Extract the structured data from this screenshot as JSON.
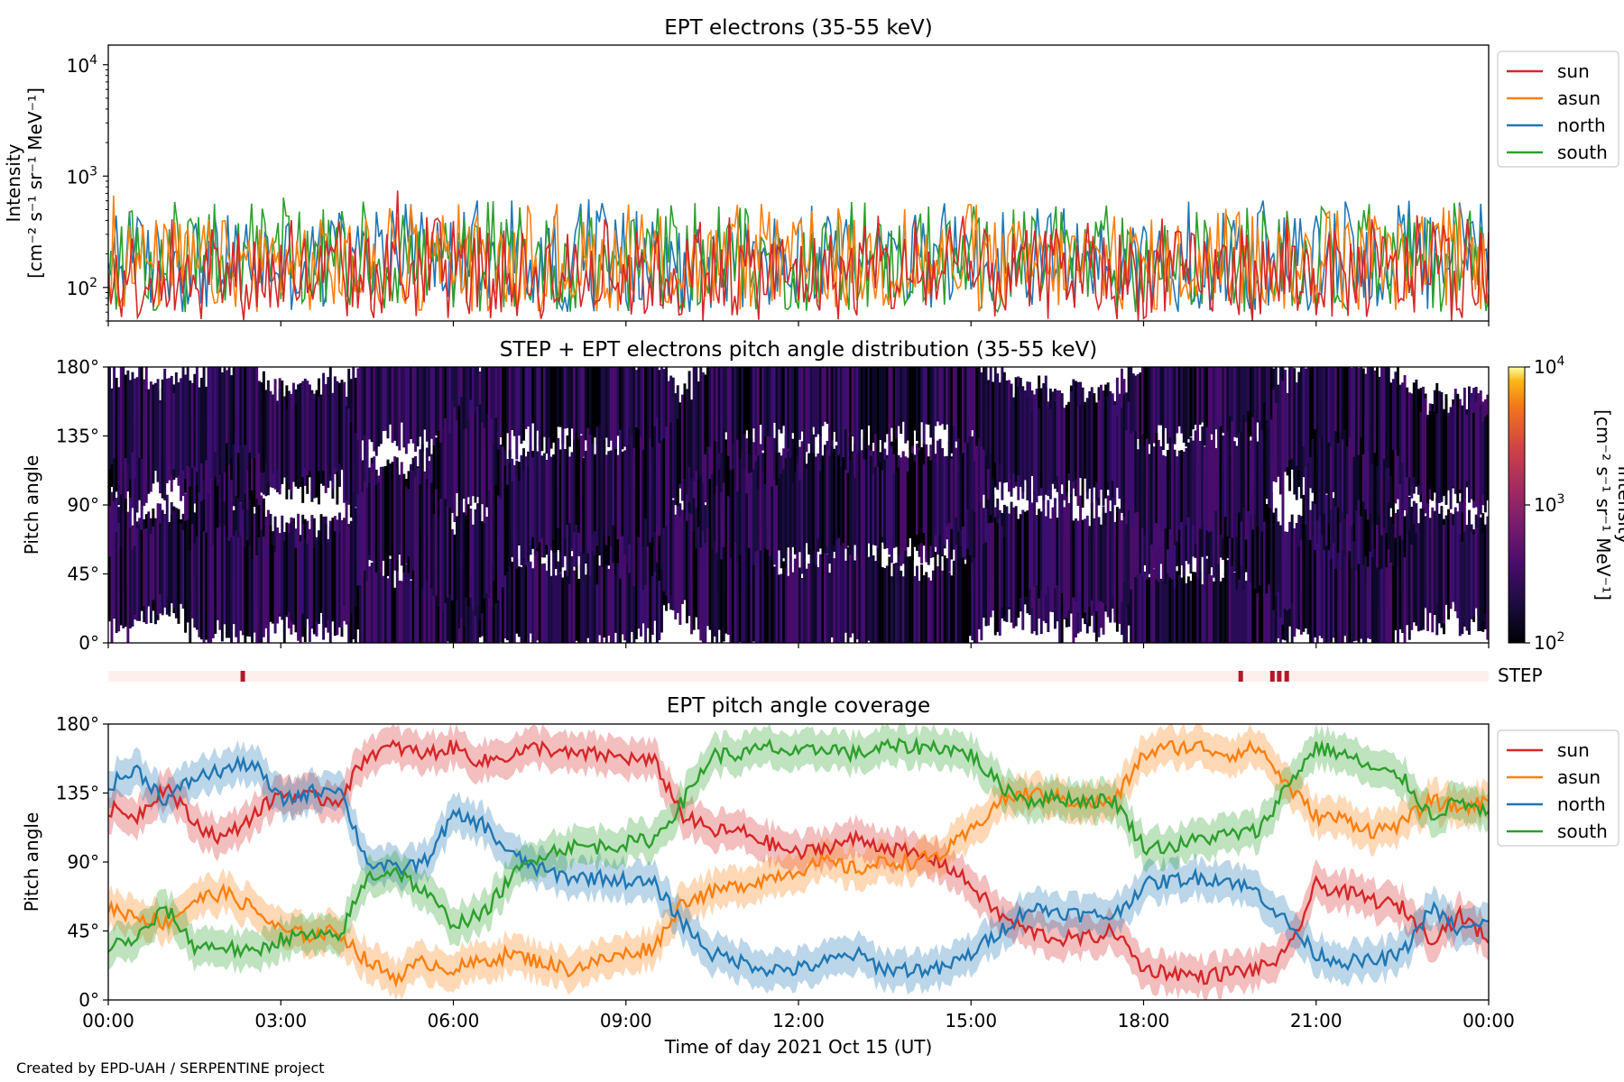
{
  "footer": "Created by EPD-UAH / SERPENTINE project",
  "colors": {
    "sun": "#d62728",
    "asun": "#ff7f0e",
    "north": "#1f77b4",
    "south": "#2ca02c",
    "step_bar_bg": "#fdf0ec",
    "step_bar_mark": "#b2182b",
    "pad_fill": "#2a0b57"
  },
  "chart_data": [
    {
      "type": "line",
      "title": "EPT electrons (35-55 keV)",
      "ylabel_line1": "Intensity",
      "ylabel_line2": "[cm⁻² s⁻¹ sr⁻¹ MeV⁻¹]",
      "yscale": "log",
      "ylim": [
        50,
        15000
      ],
      "yticks": [
        {
          "value": 100,
          "base": "10",
          "exp": "2"
        },
        {
          "value": 1000,
          "base": "10",
          "exp": "3"
        },
        {
          "value": 10000,
          "base": "10",
          "exp": "4"
        }
      ],
      "xlim_hours": [
        0,
        24
      ],
      "legend_position": "top-right outside",
      "series": [
        {
          "name": "sun",
          "color": "#d62728",
          "typical_range": [
            50,
            330
          ],
          "peak": 740
        },
        {
          "name": "asun",
          "color": "#ff7f0e",
          "typical_range": [
            60,
            420
          ],
          "peak": 670
        },
        {
          "name": "north",
          "color": "#1f77b4",
          "typical_range": [
            60,
            460
          ],
          "peak": 600
        },
        {
          "name": "south",
          "color": "#2ca02c",
          "typical_range": [
            60,
            440
          ],
          "peak": 640
        }
      ]
    },
    {
      "type": "heatmap",
      "title": "STEP + EPT electrons pitch angle distribution (35-55 keV)",
      "ylabel": "Pitch angle",
      "yticks": [
        "0°",
        "45°",
        "90°",
        "135°",
        "180°"
      ],
      "colorbar": {
        "label_line1": "Intensity",
        "label_line2": "[cm⁻² s⁻¹ sr⁻¹ MeV⁻¹]",
        "scale": "log",
        "range": [
          100,
          10000
        ],
        "ticks": [
          {
            "base": "10",
            "exp": "2"
          },
          {
            "base": "10",
            "exp": "3"
          },
          {
            "base": "10",
            "exp": "4"
          }
        ],
        "colormap": "inferno"
      },
      "xlim_hours": [
        0,
        24
      ]
    },
    {
      "type": "bar",
      "label": "STEP",
      "marks_hours": [
        2.3,
        19.65,
        20.2,
        20.32,
        20.45
      ]
    },
    {
      "type": "line",
      "title": "EPT pitch angle coverage",
      "ylabel": "Pitch angle",
      "xlabel": "Time of day 2021 Oct 15 (UT)",
      "ylim": [
        0,
        180
      ],
      "yticks": [
        "0°",
        "45°",
        "90°",
        "135°",
        "180°"
      ],
      "xticks": [
        "00:00",
        "03:00",
        "06:00",
        "09:00",
        "12:00",
        "15:00",
        "18:00",
        "21:00",
        "00:00"
      ],
      "x_hours": [
        0,
        0.5,
        1,
        1.5,
        2,
        2.5,
        3,
        3.5,
        4,
        4.5,
        5,
        5.5,
        6,
        6.5,
        7,
        7.5,
        8,
        8.5,
        9,
        9.5,
        10,
        10.5,
        11,
        11.5,
        12,
        12.5,
        13,
        13.5,
        14,
        14.5,
        15,
        15.5,
        16,
        16.5,
        17,
        17.5,
        18,
        18.5,
        19,
        19.5,
        20,
        20.5,
        21,
        21.5,
        22,
        22.5,
        23,
        23.5,
        24
      ],
      "band_halfwidth_deg": 12,
      "legend_position": "top-right outside",
      "series": [
        {
          "name": "sun",
          "color": "#d62728",
          "values": [
            125,
            120,
            140,
            115,
            105,
            120,
            135,
            132,
            130,
            160,
            165,
            160,
            165,
            155,
            160,
            165,
            160,
            160,
            158,
            155,
            120,
            110,
            110,
            102,
            95,
            100,
            105,
            100,
            95,
            90,
            75,
            55,
            45,
            40,
            40,
            45,
            20,
            18,
            15,
            18,
            20,
            30,
            75,
            70,
            65,
            60,
            40,
            55,
            40
          ]
        },
        {
          "name": "asun",
          "color": "#ff7f0e",
          "values": [
            60,
            55,
            50,
            65,
            70,
            60,
            45,
            42,
            45,
            25,
            15,
            25,
            20,
            25,
            30,
            25,
            20,
            25,
            30,
            35,
            65,
            70,
            75,
            80,
            85,
            90,
            85,
            90,
            90,
            95,
            110,
            130,
            135,
            132,
            128,
            130,
            160,
            165,
            165,
            160,
            165,
            140,
            120,
            118,
            110,
            115,
            130,
            125,
            130
          ]
        },
        {
          "name": "north",
          "color": "#1f77b4",
          "values": [
            140,
            150,
            130,
            145,
            150,
            155,
            130,
            135,
            140,
            90,
            85,
            90,
            120,
            115,
            95,
            85,
            80,
            80,
            78,
            75,
            50,
            30,
            25,
            20,
            20,
            25,
            30,
            20,
            20,
            20,
            30,
            45,
            60,
            58,
            55,
            55,
            75,
            78,
            80,
            78,
            70,
            50,
            30,
            25,
            25,
            30,
            60,
            45,
            50
          ]
        },
        {
          "name": "south",
          "color": "#2ca02c",
          "values": [
            35,
            40,
            60,
            35,
            35,
            30,
            40,
            42,
            40,
            80,
            85,
            70,
            50,
            55,
            80,
            95,
            100,
            100,
            102,
            105,
            130,
            160,
            160,
            165,
            160,
            165,
            160,
            165,
            165,
            165,
            160,
            140,
            130,
            132,
            130,
            130,
            100,
            100,
            105,
            108,
            110,
            140,
            165,
            160,
            150,
            145,
            120,
            130,
            120
          ]
        }
      ]
    }
  ]
}
